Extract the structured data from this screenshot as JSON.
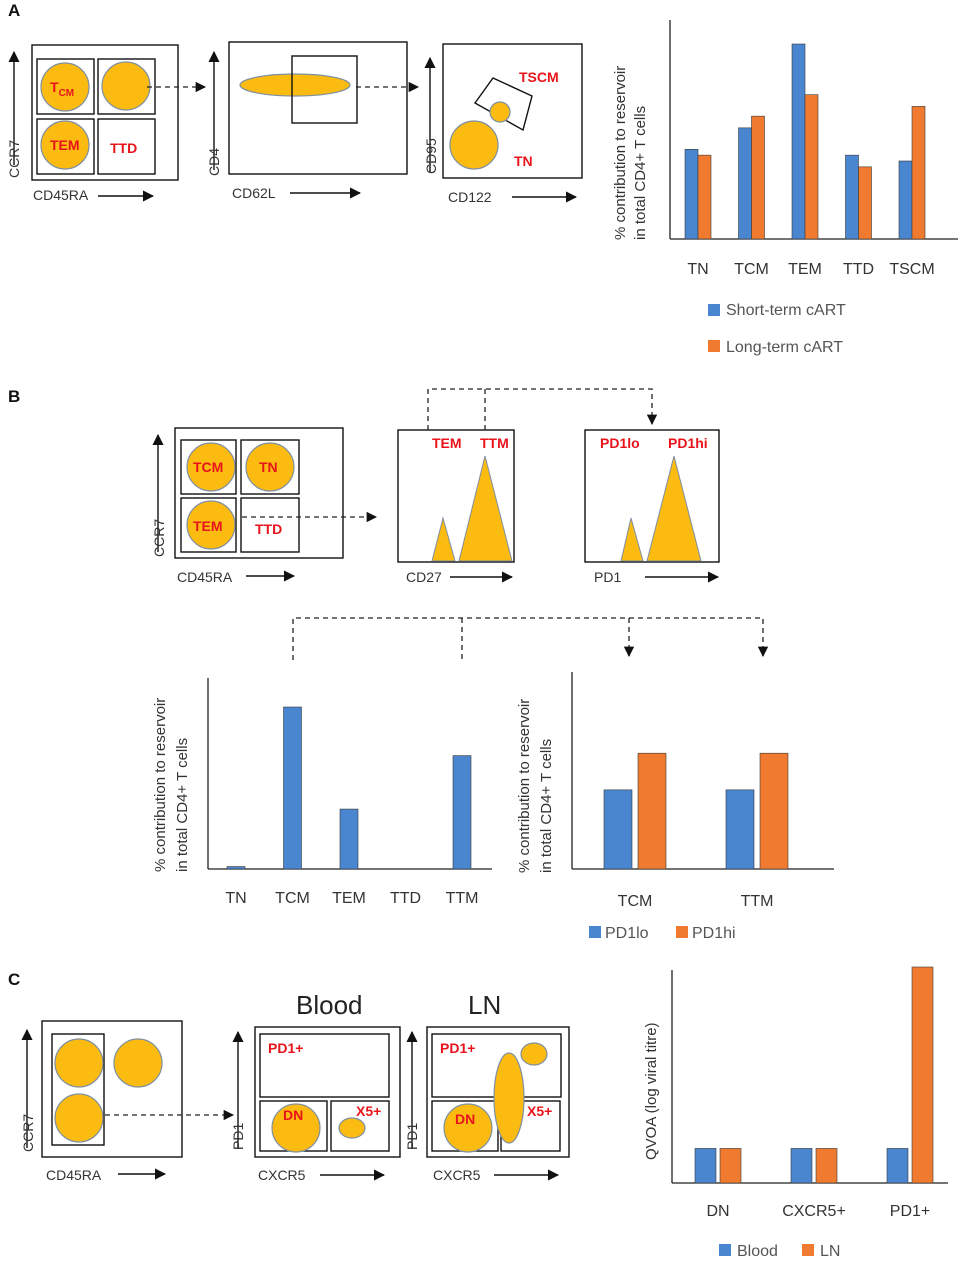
{
  "colors": {
    "short_term": "#4a86cf",
    "long_term": "#ef7a30",
    "cell_fill": "#fbbb10",
    "gate_text": "#e8141c"
  },
  "panel_a": {
    "letter": "A",
    "plot1": {
      "y_axis": "CCR7",
      "x_axis": "CD45RA",
      "gates": {
        "tcm_main": "T",
        "tcm_sub": "CM",
        "tem": "TEM",
        "ttd": "TTD"
      }
    },
    "plot2": {
      "y_axis": "CD4",
      "x_axis": "CD62L"
    },
    "plot3": {
      "y_axis": "CD95",
      "x_axis": "CD122",
      "gates": {
        "tscm": "TSCM",
        "tn": "TN"
      }
    }
  },
  "panel_b": {
    "letter": "B",
    "plot1": {
      "y_axis": "CCR7",
      "x_axis": "CD45RA",
      "gates": {
        "tcm": "TCM",
        "tn": "TN",
        "tem": "TEM",
        "ttd": "TTD"
      }
    },
    "hist1": {
      "x_axis": "CD27",
      "labels": {
        "left": "TEM",
        "right": "TTM"
      }
    },
    "hist2": {
      "x_axis": "PD1",
      "labels": {
        "left": "PD1lo",
        "right": "PD1hi"
      }
    }
  },
  "panel_c": {
    "letter": "C",
    "plot1": {
      "y_axis": "CCR7",
      "x_axis": "CD45RA"
    },
    "blood": {
      "title": "Blood",
      "y_axis": "PD1",
      "x_axis": "CXCR5",
      "gates": {
        "pd1": "PD1+",
        "dn": "DN",
        "x5": "X5+"
      }
    },
    "ln": {
      "title": "LN",
      "y_axis": "PD1",
      "x_axis": "CXCR5",
      "gates": {
        "pd1": "PD1+",
        "dn": "DN",
        "x5": "X5+"
      }
    }
  },
  "chart_data": [
    {
      "id": "A",
      "type": "bar",
      "categories": [
        "TN",
        "TCM",
        "TEM",
        "TTD",
        "TSCM"
      ],
      "series": [
        {
          "name": "Short-term cART",
          "values": [
            46,
            57,
            100,
            43,
            40
          ]
        },
        {
          "name": "Long-term cART",
          "values": [
            43,
            63,
            74,
            37,
            68
          ]
        }
      ],
      "ylabel_line1": "% contribution to reservoir",
      "ylabel_line2": "in total CD4+ T cells",
      "ylim": [
        0,
        100
      ]
    },
    {
      "id": "B1",
      "type": "bar",
      "categories": [
        "TN",
        "TCM",
        "TEM",
        "TTD",
        "TTM"
      ],
      "series": [
        {
          "name": "",
          "values": [
            1.5,
            100,
            37,
            0,
            70
          ]
        }
      ],
      "ylabel_line1": "% contribution to reservoir",
      "ylabel_line2": "in total CD4+ T cells",
      "ylim": [
        0,
        100
      ]
    },
    {
      "id": "B2",
      "type": "bar",
      "categories": [
        "TCM",
        "TTM"
      ],
      "series": [
        {
          "name": "PD1lo",
          "values": [
            41,
            41
          ]
        },
        {
          "name": "PD1hi",
          "values": [
            60,
            60
          ]
        }
      ],
      "ylabel_line1": "% contribution to reservoir",
      "ylabel_line2": "in total CD4+ T cells",
      "ylim": [
        0,
        100
      ]
    },
    {
      "id": "C",
      "type": "bar",
      "categories": [
        "DN",
        "CXCR5+",
        "PD1+"
      ],
      "series": [
        {
          "name": "Blood",
          "values": [
            16,
            16,
            16
          ]
        },
        {
          "name": "LN",
          "values": [
            16,
            16,
            100
          ]
        }
      ],
      "ylabel_line1": "QVOA (log viral titre)",
      "ylabel_line2": "",
      "ylim": [
        0,
        100
      ]
    }
  ]
}
